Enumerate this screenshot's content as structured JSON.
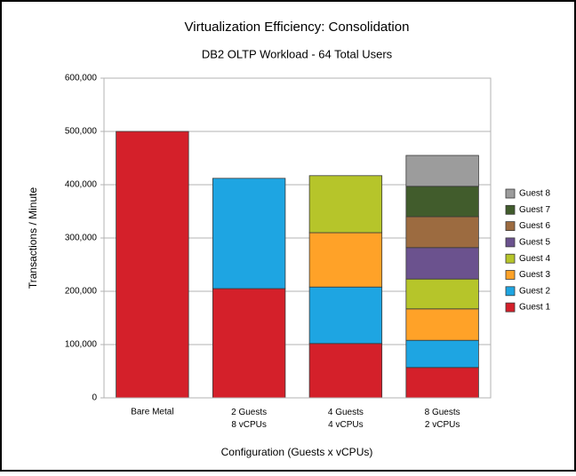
{
  "chart_data": {
    "type": "stacked_bar",
    "title": "Virtualization Efficiency: Consolidation",
    "subtitle": "DB2 OLTP Workload - 64 Total Users",
    "x_label": "Configuration (Guests x vCPUs)",
    "y_label": "Transactions / Minute",
    "categories": [
      "Bare Metal",
      "2 Guests\n8 vCPUs",
      "4 Guests\n4 vCPUs",
      "8 Guests\n2 vCPUs"
    ],
    "series": [
      {
        "name": "Guest 1",
        "color": "#d4202a",
        "values": [
          500000,
          205000,
          102000,
          57000
        ]
      },
      {
        "name": "Guest 2",
        "color": "#1ea5e2",
        "values": [
          null,
          207000,
          106000,
          51000
        ]
      },
      {
        "name": "Guest 3",
        "color": "#ffa228",
        "values": [
          null,
          null,
          102000,
          59000
        ]
      },
      {
        "name": "Guest 4",
        "color": "#b6c52a",
        "values": [
          null,
          null,
          107000,
          56000
        ]
      },
      {
        "name": "Guest 5",
        "color": "#6b528e",
        "values": [
          null,
          null,
          null,
          59000
        ]
      },
      {
        "name": "Guest 6",
        "color": "#9c6b40",
        "values": [
          null,
          null,
          null,
          58000
        ]
      },
      {
        "name": "Guest 7",
        "color": "#415c2c",
        "values": [
          null,
          null,
          null,
          57000
        ]
      },
      {
        "name": "Guest 8",
        "color": "#9c9c9c",
        "values": [
          null,
          null,
          null,
          58000
        ]
      }
    ],
    "ylim": [
      0,
      600000
    ],
    "yticks": [
      0,
      {
        "value": 100000,
        "label": "100,000"
      },
      {
        "value": 200000,
        "label": "200,000"
      },
      {
        "value": 300000,
        "label": "300,000"
      },
      {
        "value": 400000,
        "label": "400,000"
      },
      {
        "value": 500000,
        "label": "500,000"
      },
      {
        "value": 600000,
        "label": "600,000"
      }
    ],
    "grid": true,
    "legend": "right"
  }
}
